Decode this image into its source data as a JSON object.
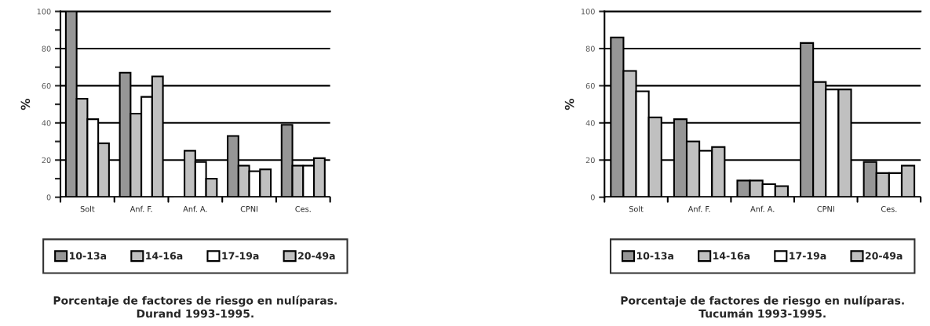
{
  "chart_data": [
    {
      "type": "bar",
      "title": "Porcentaje de factores de riesgo en nulíparas. Durand 1993-1995.",
      "ylabel": "%",
      "categories": [
        "Solt",
        "Anf. F.",
        "Anf. A.",
        "CPNI",
        "Ces."
      ],
      "ylim": [
        0,
        100
      ],
      "yticks": [
        0,
        {
          "value": 10,
          "label": null
        },
        20,
        {
          "value": 30,
          "label": null
        },
        40,
        {
          "value": 50,
          "label": null
        },
        60,
        {
          "value": 70,
          "label": null
        },
        80,
        {
          "value": 90,
          "label": null
        },
        100
      ],
      "grid": "y",
      "legend": "bottom",
      "series": [
        {
          "name": "10-13a",
          "color": "#969696",
          "values": [
            100,
            67,
            0,
            33,
            39
          ]
        },
        {
          "name": "14-16a",
          "color": "#c0c0c0",
          "values": [
            53,
            45,
            25,
            17,
            17
          ]
        },
        {
          "name": "17-19a",
          "color": "#ffffff",
          "values": [
            42,
            54,
            19,
            14,
            17
          ]
        },
        {
          "name": "20-49a",
          "color": "#c0c0c0",
          "values": [
            29,
            65,
            10,
            15,
            21
          ]
        }
      ]
    },
    {
      "type": "bar",
      "title": "Porcentaje de factores de riesgo en nulíparas. Tucumán 1993-1995.",
      "ylabel": "%",
      "categories": [
        "Solt",
        "Anf. F.",
        "Anf. A.",
        "CPNI",
        "Ces."
      ],
      "ylim": [
        0,
        100
      ],
      "yticks": [
        0,
        20,
        40,
        60,
        80,
        100
      ],
      "grid": "y",
      "legend": "bottom",
      "series": [
        {
          "name": "10-13a",
          "color": "#969696",
          "values": [
            86,
            42,
            9,
            83,
            19
          ]
        },
        {
          "name": "14-16a",
          "color": "#c0c0c0",
          "values": [
            68,
            30,
            9,
            62,
            13
          ]
        },
        {
          "name": "17-19a",
          "color": "#ffffff",
          "values": [
            57,
            25,
            7,
            58,
            13
          ]
        },
        {
          "name": "20-49a",
          "color": "#c0c0c0",
          "values": [
            43,
            27,
            6,
            58,
            17
          ]
        }
      ]
    }
  ]
}
